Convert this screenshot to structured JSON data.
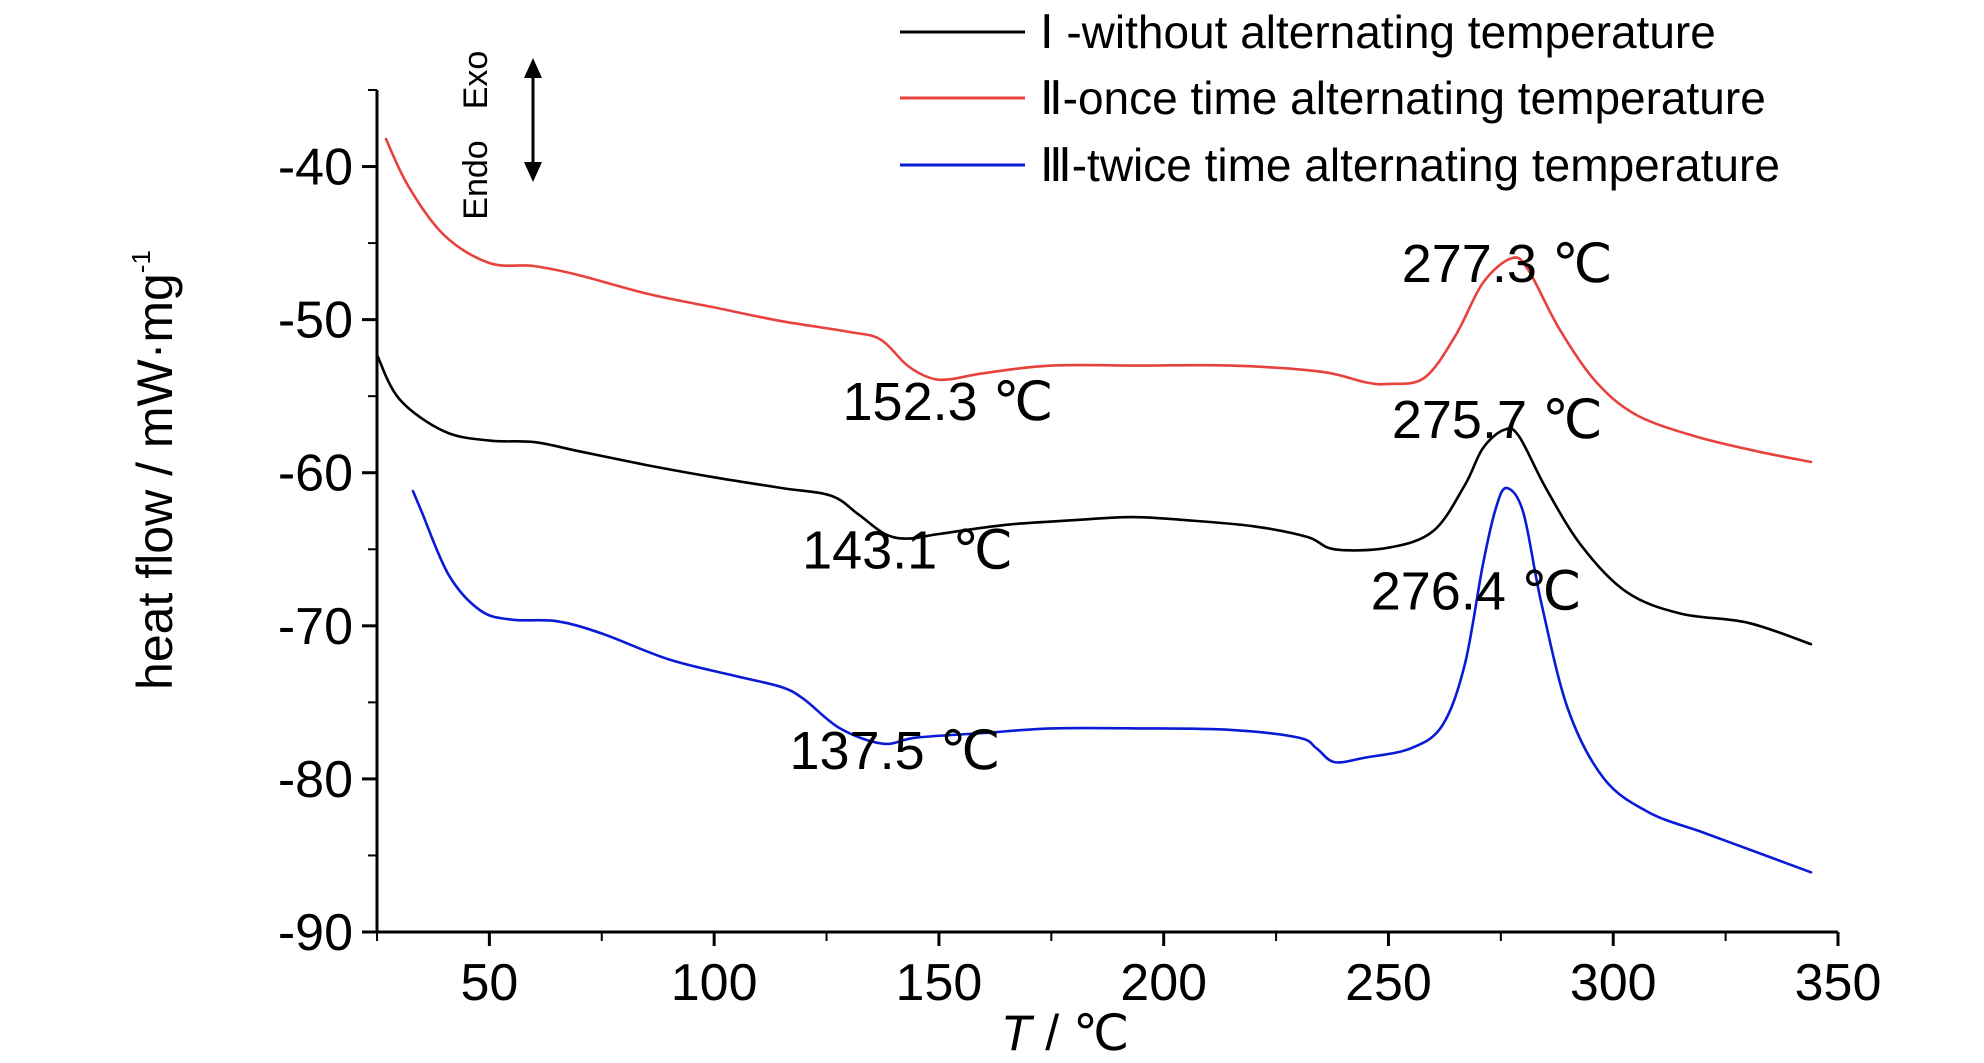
{
  "chart_data": {
    "type": "line",
    "xlabel_italic": "T",
    "xlabel_rest": " / ℃",
    "ylabel": "heat flow / mW·mg",
    "ylabel_sup": "-1",
    "xlim": [
      25,
      350
    ],
    "ylim": [
      -90,
      -35
    ],
    "x_ticks": [
      50,
      100,
      150,
      200,
      250,
      300,
      350
    ],
    "x_tick_labels": [
      "50",
      "100",
      "150",
      "200",
      "250",
      "300",
      "350"
    ],
    "y_ticks": [
      -90,
      -80,
      -70,
      -60,
      -50,
      -40
    ],
    "y_tick_labels": [
      "-90",
      "-80",
      "-70",
      "-60",
      "-50",
      "-40"
    ],
    "legend_position": "top-right",
    "direction_labels": {
      "exo": "Exo",
      "endo": "Endo"
    },
    "series": [
      {
        "name": "Ⅰ -without alternating temperature",
        "color": "#000000",
        "points": [
          [
            25,
            -52.3
          ],
          [
            30,
            -55.2
          ],
          [
            40,
            -57.3
          ],
          [
            50,
            -57.9
          ],
          [
            60,
            -58.0
          ],
          [
            70,
            -58.6
          ],
          [
            85,
            -59.5
          ],
          [
            100,
            -60.3
          ],
          [
            115,
            -61.0
          ],
          [
            126,
            -61.5
          ],
          [
            132,
            -62.7
          ],
          [
            138,
            -64.0
          ],
          [
            143.1,
            -64.3
          ],
          [
            150,
            -64.0
          ],
          [
            165,
            -63.4
          ],
          [
            180,
            -63.1
          ],
          [
            193,
            -62.9
          ],
          [
            205,
            -63.1
          ],
          [
            220,
            -63.5
          ],
          [
            232,
            -64.2
          ],
          [
            238,
            -65.0
          ],
          [
            250,
            -64.9
          ],
          [
            260,
            -63.8
          ],
          [
            267,
            -60.8
          ],
          [
            271,
            -58.4
          ],
          [
            275.7,
            -57.2
          ],
          [
            279,
            -57.6
          ],
          [
            285,
            -61.0
          ],
          [
            293,
            -64.8
          ],
          [
            303,
            -67.8
          ],
          [
            315,
            -69.2
          ],
          [
            330,
            -69.8
          ],
          [
            344,
            -71.2
          ]
        ]
      },
      {
        "name": "Ⅱ-once time alternating temperature",
        "color": "#e8423f",
        "points": [
          [
            27,
            -38.2
          ],
          [
            32,
            -41.3
          ],
          [
            40,
            -44.5
          ],
          [
            50,
            -46.3
          ],
          [
            60,
            -46.5
          ],
          [
            70,
            -47.1
          ],
          [
            85,
            -48.3
          ],
          [
            100,
            -49.2
          ],
          [
            115,
            -50.1
          ],
          [
            130,
            -50.8
          ],
          [
            137,
            -51.3
          ],
          [
            143,
            -53.0
          ],
          [
            148,
            -53.8
          ],
          [
            152.3,
            -53.9
          ],
          [
            160,
            -53.5
          ],
          [
            175,
            -53.0
          ],
          [
            195,
            -53.0
          ],
          [
            215,
            -53.0
          ],
          [
            235,
            -53.4
          ],
          [
            245,
            -54.1
          ],
          [
            250,
            -54.2
          ],
          [
            258,
            -53.8
          ],
          [
            265,
            -51.0
          ],
          [
            271,
            -47.6
          ],
          [
            277.3,
            -46.0
          ],
          [
            281,
            -46.7
          ],
          [
            288,
            -50.6
          ],
          [
            296,
            -54.0
          ],
          [
            305,
            -56.2
          ],
          [
            318,
            -57.6
          ],
          [
            332,
            -58.6
          ],
          [
            344,
            -59.3
          ]
        ]
      },
      {
        "name": "Ⅲ-twice time alternating temperature",
        "color": "#0a1bd6",
        "points": [
          [
            33,
            -61.2
          ],
          [
            35,
            -62.6
          ],
          [
            41,
            -66.7
          ],
          [
            48,
            -69.0
          ],
          [
            55,
            -69.6
          ],
          [
            65,
            -69.7
          ],
          [
            75,
            -70.5
          ],
          [
            90,
            -72.2
          ],
          [
            105,
            -73.3
          ],
          [
            115,
            -74.0
          ],
          [
            120,
            -74.8
          ],
          [
            128,
            -76.7
          ],
          [
            137.5,
            -77.7
          ],
          [
            145,
            -77.3
          ],
          [
            160,
            -77.0
          ],
          [
            175,
            -76.7
          ],
          [
            195,
            -76.7
          ],
          [
            215,
            -76.8
          ],
          [
            230,
            -77.3
          ],
          [
            234,
            -78.0
          ],
          [
            238,
            -78.9
          ],
          [
            245,
            -78.6
          ],
          [
            255,
            -78.0
          ],
          [
            262,
            -76.5
          ],
          [
            267,
            -72.5
          ],
          [
            271,
            -66.0
          ],
          [
            274,
            -62.2
          ],
          [
            276.4,
            -61.0
          ],
          [
            280,
            -62.6
          ],
          [
            284,
            -68.5
          ],
          [
            290,
            -75.5
          ],
          [
            298,
            -80.0
          ],
          [
            308,
            -82.2
          ],
          [
            320,
            -83.5
          ],
          [
            332,
            -84.8
          ],
          [
            344,
            -86.1
          ]
        ]
      }
    ],
    "annotations": [
      {
        "text": "277.3 ℃",
        "x": 276.4,
        "y": -46.3
      },
      {
        "text": "152.3 ℃",
        "x": 152.0,
        "y": -55.3
      },
      {
        "text": "275.7 ℃",
        "x": 274.2,
        "y": -56.5
      },
      {
        "text": "143.1 ℃",
        "x": 143.0,
        "y": -65.0
      },
      {
        "text": "276.4 ℃",
        "x": 269.5,
        "y": -67.7
      },
      {
        "text": "137.5 ℃",
        "x": 140.2,
        "y": -78.1
      }
    ]
  }
}
